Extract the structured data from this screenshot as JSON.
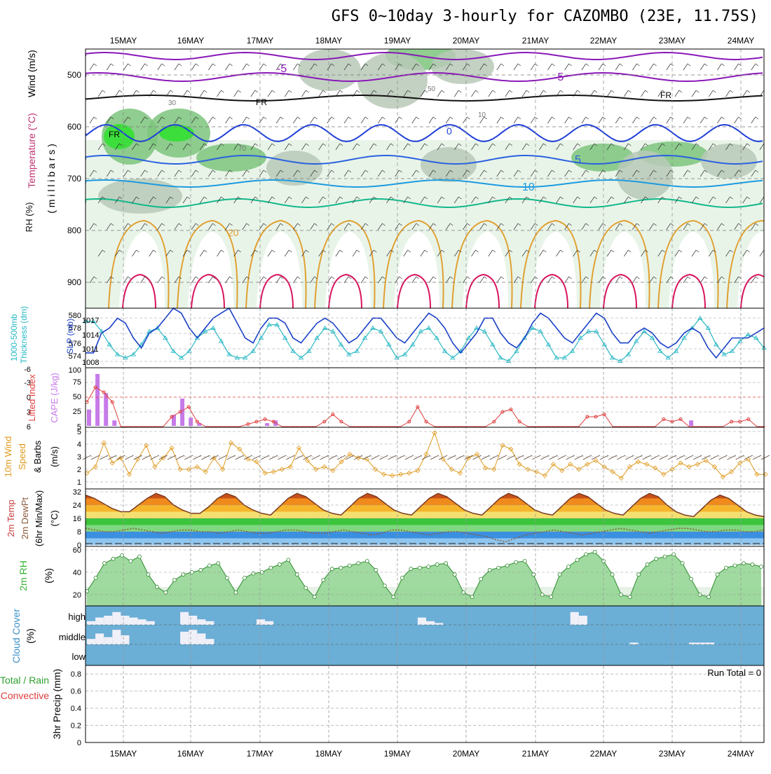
{
  "title": "GFS 0~10day 3-hourly for CAZOMBO (23E, 11.75S)",
  "dates": [
    "15MAY",
    "16MAY",
    "17MAY",
    "18MAY",
    "19MAY",
    "20MAY",
    "21MAY",
    "22MAY",
    "23MAY",
    "24MAY"
  ],
  "colors": {
    "frame": "#000000",
    "grid": "#aaaaaa",
    "rh_light": "#e6f2e6",
    "rh_mid": "#b9c9b9",
    "rh_dark": "#7cc47c",
    "rh_bright": "#2ee02e",
    "temp_minus5": "#8a19b8",
    "temp_0": "#1f3fd8",
    "temp_5": "#2a62e0",
    "temp_10": "#1d9be0",
    "temp_15": "#12b889",
    "temp_20": "#e0a030",
    "temp_25": "#d8145e",
    "slp": "#1940c8",
    "thickness": "#27b8c4",
    "cape": "#c77ae8",
    "lifted": "#e03c3c",
    "wind": "#e09a1c",
    "barb": "#5a4030",
    "rh2m": "#35b535",
    "cloud": "#6baed6",
    "cloud_white": "#f0f0f8"
  },
  "panels": {
    "upper": {
      "ylabel_wind": "Wind (m/s)",
      "ylabel_temp": "Temperature (°C)",
      "ylabel_rh": "RH (%)",
      "ylabel_mb": "( m i l l i b a r s )",
      "ticks": [
        "500",
        "600",
        "700",
        "800",
        "900"
      ],
      "contour_labels": {
        "minus5": "-5",
        "zero": "0",
        "five": "5",
        "ten": "10",
        "twenty": "20",
        "fr": "FR",
        "rh30": "30",
        "rh50": "50",
        "rh70": "70",
        "rh10": "10"
      }
    },
    "slp": {
      "ylabel_thick": "1000-500mb",
      "ylabel_thick2": "Thickness (dm)",
      "ylabel_slp": "SLP (mb)",
      "left_ticks": [
        "580",
        "578",
        "576",
        "574"
      ],
      "right_ticks": [
        "1017",
        "1014",
        "1011",
        "1008"
      ]
    },
    "cape": {
      "ylabel_li": "Lifted Index",
      "ylabel_cape": "CAPE (J/kg)",
      "left_ticks": [
        "-6",
        "-3",
        "0",
        "3",
        "6"
      ],
      "right_ticks": [
        "100",
        "75",
        "50",
        "25",
        "5"
      ]
    },
    "wind": {
      "ylabel_1": "10m Wind",
      "ylabel_2": "Speed",
      "ylabel_3": "& Barbs",
      "unit": "(m/s)",
      "ticks": [
        "5",
        "4",
        "3",
        "2",
        "1"
      ]
    },
    "temp": {
      "ylabel_1": "2m Temp",
      "ylabel_2": "2m DewPt",
      "ylabel_3": "(6hr Min/Max)",
      "unit": "(°C)",
      "ticks": [
        "32",
        "24",
        "16",
        "8",
        "0"
      ]
    },
    "rh": {
      "ylabel": "2m RH",
      "unit": "(%)",
      "ticks": [
        "60",
        "40",
        "20"
      ]
    },
    "cloud": {
      "ylabel": "Cloud Cover",
      "unit": "(%)",
      "levels": [
        "high",
        "middle",
        "low"
      ]
    },
    "precip": {
      "ylabel_1": "Total / Rain",
      "ylabel_2": "Convective",
      "ylabel_3": "3hr Precip (mm)",
      "ticks": [
        "0.8",
        "0.6",
        "0.4",
        "0.2",
        "0"
      ],
      "run_total": "Run Total = 0"
    }
  },
  "chart_data": [
    {
      "type": "line",
      "title": "1000-500mb Thickness (dm) / SLP (mb)",
      "series": [
        {
          "name": "SLP (mb)",
          "values": [
            1009,
            1009,
            1013,
            1014,
            1016,
            1015,
            1012,
            1010,
            1013,
            1014,
            1016,
            1018,
            1017,
            1014,
            1012,
            1014,
            1016,
            1017,
            1018,
            1015,
            1012,
            1011,
            1014,
            1016,
            1016,
            1015,
            1012,
            1011,
            1013,
            1015,
            1016,
            1015,
            1013,
            1011,
            1012,
            1014,
            1016,
            1016,
            1014,
            1012,
            1011,
            1013,
            1015,
            1017,
            1016,
            1014,
            1011,
            1009,
            1011,
            1013,
            1016,
            1016,
            1013,
            1011,
            1010,
            1012,
            1015,
            1017,
            1016,
            1014,
            1012,
            1011,
            1013,
            1015,
            1017,
            1016,
            1013,
            1011,
            1011,
            1013,
            1014,
            1013,
            1011,
            1010,
            1011,
            1013,
            1014,
            1013,
            1010,
            1008,
            1010,
            1012,
            1012,
            1012,
            1013,
            1014
          ]
        },
        {
          "name": "1000-500mb Thickness (dm)",
          "values": [
            579.5,
            579.5,
            578,
            576,
            574.5,
            574,
            574.5,
            576,
            578,
            578.5,
            577,
            575,
            574,
            575,
            577,
            578,
            578.5,
            576.5,
            574.5,
            574,
            574,
            575,
            577,
            579,
            579,
            577,
            575,
            574,
            575,
            577,
            578.5,
            578,
            576,
            574.5,
            575,
            577,
            578.5,
            578,
            576,
            574,
            574.5,
            576,
            578,
            578.5,
            577,
            575,
            574,
            575,
            577,
            578.5,
            578,
            576,
            574,
            573.5,
            575,
            577,
            578.5,
            578,
            576,
            574,
            574,
            575,
            577,
            578,
            578,
            576,
            574,
            573.5,
            574.5,
            576.5,
            578,
            577,
            575,
            574,
            575,
            577,
            578.5,
            580,
            578.5,
            576,
            574.5,
            575,
            576.5,
            577.5,
            577,
            575.5
          ]
        }
      ]
    },
    {
      "type": "bar",
      "title": "Lifted Index / CAPE (J/kg)",
      "series": [
        {
          "name": "CAPE (J/kg)",
          "values": [
            30,
            95,
            60,
            10,
            0,
            0,
            0,
            0,
            0,
            0,
            20,
            50,
            15,
            5,
            0,
            0,
            0,
            0,
            0,
            0,
            0,
            5,
            10,
            0,
            0,
            0,
            0,
            0,
            0,
            0,
            0,
            0,
            0,
            0,
            0,
            0,
            0,
            0,
            0,
            0,
            0,
            0,
            0,
            0,
            0,
            0,
            0,
            0,
            0,
            0,
            0,
            0,
            0,
            0,
            0,
            0,
            0,
            0,
            0,
            0,
            0,
            0,
            0,
            0,
            0,
            0,
            0,
            0,
            0,
            0,
            0,
            10,
            0,
            0,
            0,
            0,
            0,
            0,
            0,
            0,
            0
          ]
        },
        {
          "name": "Lifted Index",
          "values": [
            1,
            -2,
            -1,
            1,
            6,
            6,
            6,
            6,
            6,
            6,
            4,
            3,
            2,
            5,
            6,
            6,
            6,
            6,
            6,
            5.5,
            5,
            4.5,
            5,
            6,
            6,
            6,
            6,
            6,
            5,
            3.5,
            5,
            6,
            6,
            6,
            6,
            6,
            6,
            6,
            5,
            2,
            5,
            6,
            6,
            6,
            6,
            6,
            6,
            6,
            5,
            3,
            2.5,
            5,
            6,
            6,
            6,
            6,
            6,
            6,
            6,
            4,
            4,
            3.5,
            6,
            6,
            6,
            6,
            6,
            6,
            4.5,
            5,
            4.5,
            6,
            6,
            6,
            6,
            6,
            5,
            5,
            4.5,
            6,
            6
          ]
        }
      ],
      "ylim_li": [
        6,
        -6
      ],
      "ylim_cape": [
        5,
        100
      ]
    },
    {
      "type": "line",
      "title": "10m Wind Speed & Barbs (m/s)",
      "series": [
        {
          "name": "Speed",
          "values": [
            1.7,
            2.2,
            4.1,
            2.5,
            2.9,
            1.6,
            2.8,
            3.9,
            2.2,
            2.9,
            3.7,
            2.0,
            2.0,
            2.2,
            1.8,
            2.9,
            2.0,
            4.1,
            3.6,
            2.8,
            2.6,
            1.7,
            1.8,
            2.0,
            2.2,
            3.7,
            2.7,
            2.0,
            2.2,
            1.9,
            2.6,
            3.2,
            2.9,
            2.8,
            2.0,
            1.6,
            1.5,
            1.6,
            1.7,
            1.9,
            3.2,
            4.9,
            2.8,
            2.0,
            1.7,
            2.9,
            3.2,
            2.1,
            2.0,
            3.9,
            3.6,
            2.4,
            2.0,
            1.8,
            1.5,
            2.4,
            1.9,
            2.4,
            2.0,
            2.4,
            2.7,
            2.2,
            1.8,
            1.3,
            2.2,
            2.6,
            2.4,
            2.1,
            1.6,
            2.0,
            2.5,
            2.2,
            2.4,
            2.7,
            2.2,
            1.4,
            1.8,
            2.5,
            2.8,
            1.6,
            1.6
          ]
        }
      ],
      "ylim": [
        1,
        5
      ]
    },
    {
      "type": "area",
      "title": "2m Temp / 2m DewPt (6hr Min/Max) (°C)",
      "series": [
        {
          "name": "2m Temp",
          "values": [
            30,
            28,
            25,
            22,
            20,
            20,
            24,
            28,
            31,
            29,
            24,
            21,
            19,
            19,
            23,
            28,
            31,
            29,
            24,
            21,
            19,
            18,
            23,
            28,
            31,
            29,
            25,
            21,
            19,
            18,
            23,
            28,
            31,
            29,
            25,
            21,
            19,
            18,
            23,
            28,
            31,
            29,
            25,
            21,
            19,
            18,
            23,
            28,
            31,
            29,
            25,
            21,
            19,
            18,
            23,
            28,
            31,
            29,
            25,
            21,
            19,
            18,
            23,
            28,
            31,
            29,
            24,
            20,
            18,
            17,
            22,
            27,
            30,
            28,
            24,
            20,
            18,
            17
          ]
        },
        {
          "name": "2m DewPt",
          "values": [
            10,
            9,
            8,
            8,
            9,
            10,
            9,
            8,
            7,
            8,
            9,
            9,
            8,
            8,
            7,
            8,
            9,
            8,
            7,
            7,
            8,
            9,
            9,
            8,
            7,
            7,
            8,
            9,
            8,
            7,
            6,
            7,
            9,
            9,
            8,
            7,
            6,
            7,
            8,
            8,
            7,
            6,
            5,
            3,
            2,
            4,
            6,
            7,
            8,
            9,
            8,
            7,
            6,
            7,
            8,
            9,
            10,
            9,
            8,
            7,
            8,
            9,
            10,
            10,
            9,
            8,
            8,
            9,
            9,
            8,
            8,
            9
          ]
        }
      ],
      "ylim": [
        0,
        32
      ]
    },
    {
      "type": "area",
      "title": "2m RH (%)",
      "series": [
        {
          "name": "2m RH",
          "values": [
            23,
            35,
            48,
            52,
            55,
            50,
            54,
            38,
            27,
            22,
            33,
            38,
            40,
            42,
            46,
            48,
            35,
            22,
            35,
            39,
            40,
            44,
            47,
            51,
            38,
            26,
            18,
            33,
            43,
            44,
            46,
            48,
            50,
            42,
            28,
            18,
            35,
            43,
            44,
            45,
            47,
            48,
            38,
            22,
            18,
            34,
            42,
            44,
            46,
            49,
            50,
            38,
            20,
            18,
            38,
            45,
            51,
            56,
            58,
            50,
            38,
            20,
            18,
            38,
            47,
            52,
            54,
            56,
            48,
            34,
            20,
            18,
            38,
            44,
            46,
            48,
            47,
            45
          ]
        }
      ],
      "ylim": [
        10,
        60
      ]
    },
    {
      "type": "bar",
      "title": "Cloud Cover (%)",
      "series": [
        {
          "name": "high",
          "values": [
            20,
            40,
            50,
            70,
            50,
            40,
            30,
            20,
            0,
            0,
            0,
            70,
            50,
            30,
            20,
            0,
            0,
            0,
            0,
            0,
            30,
            20,
            0,
            0,
            0,
            0,
            0,
            0,
            0,
            0,
            0,
            0,
            0,
            0,
            0,
            0,
            0,
            0,
            0,
            40,
            20,
            10,
            0,
            0,
            0,
            0,
            0,
            0,
            0,
            0,
            0,
            0,
            0,
            0,
            0,
            0,
            0,
            70,
            50,
            0,
            0,
            0,
            0,
            0,
            0,
            0,
            0,
            0,
            0,
            0,
            0,
            0,
            0,
            0,
            0,
            0,
            0,
            0,
            0,
            0,
            0
          ]
        },
        {
          "name": "middle",
          "values": [
            30,
            60,
            40,
            80,
            50,
            0,
            0,
            0,
            0,
            0,
            0,
            70,
            80,
            60,
            30,
            0,
            0,
            0,
            0,
            0,
            0,
            0,
            0,
            0,
            0,
            0,
            0,
            0,
            0,
            0,
            0,
            0,
            0,
            0,
            0,
            0,
            0,
            0,
            0,
            0,
            0,
            0,
            0,
            0,
            0,
            0,
            0,
            0,
            0,
            0,
            0,
            0,
            0,
            0,
            0,
            0,
            0,
            0,
            0,
            0,
            0,
            0,
            0,
            0,
            10,
            0,
            0,
            0,
            0,
            0,
            0,
            10,
            10,
            10,
            0,
            0,
            0,
            0,
            0,
            0,
            0
          ]
        }
      ]
    },
    {
      "type": "bar",
      "title": "3hr Precip (mm)",
      "series": [
        {
          "name": "Total / Rain",
          "values": []
        },
        {
          "name": "Convective",
          "values": []
        }
      ],
      "ylim": [
        0,
        0.9
      ]
    }
  ]
}
